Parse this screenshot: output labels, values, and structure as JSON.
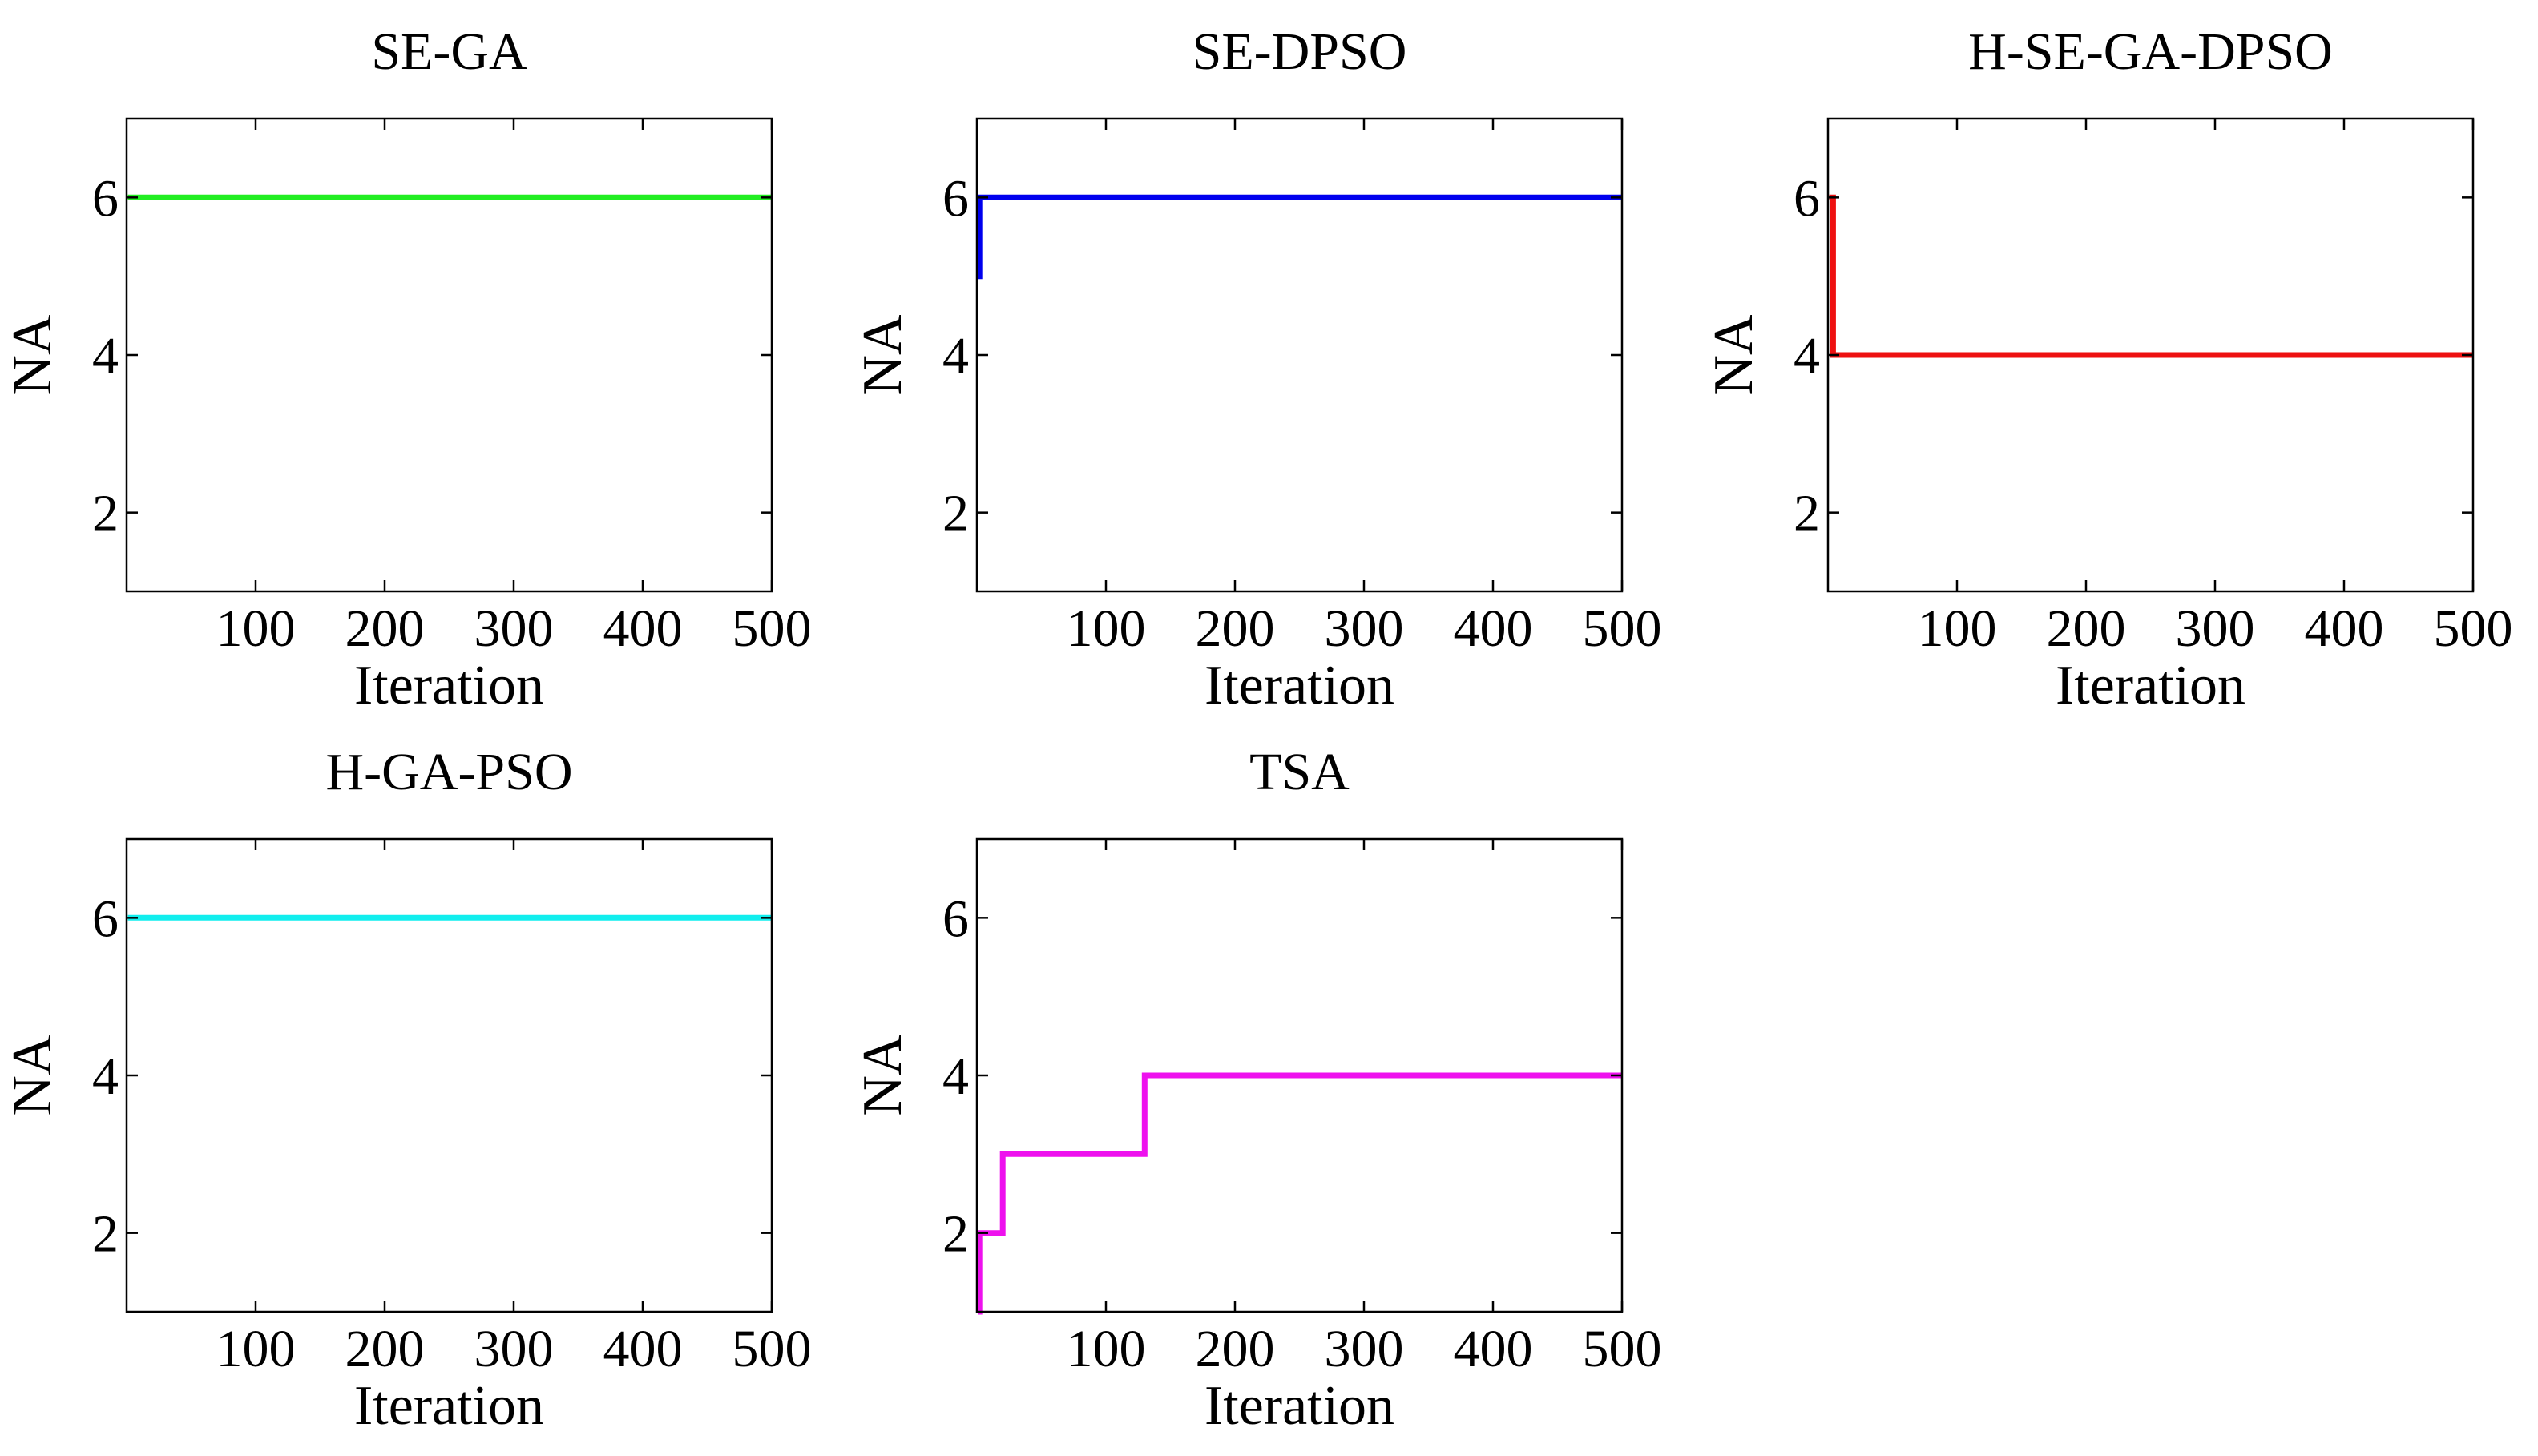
{
  "chart_data": [
    {
      "type": "line",
      "title": "SE-GA",
      "xlabel": "Iteration",
      "ylabel": "NA",
      "xlim": [
        0,
        500
      ],
      "ylim": [
        1,
        7
      ],
      "xticks": [
        100,
        200,
        300,
        400,
        500
      ],
      "yticks": [
        2,
        4,
        6
      ],
      "grid": false,
      "series": [
        {
          "name": "SE-GA",
          "color": "#22ee22",
          "x": [
            1,
            500
          ],
          "y": [
            6,
            6
          ]
        }
      ]
    },
    {
      "type": "line",
      "title": "SE-DPSO",
      "xlabel": "Iteration",
      "ylabel": "NA",
      "xlim": [
        0,
        500
      ],
      "ylim": [
        1,
        7
      ],
      "xticks": [
        100,
        200,
        300,
        400,
        500
      ],
      "yticks": [
        2,
        4,
        6
      ],
      "grid": false,
      "series": [
        {
          "name": "SE-DPSO",
          "color": "#0000ee",
          "x": [
            1,
            2,
            2,
            500
          ],
          "y": [
            5,
            5,
            6,
            6
          ]
        }
      ]
    },
    {
      "type": "line",
      "title": "H-SE-GA-DPSO",
      "xlabel": "Iteration",
      "ylabel": "NA",
      "xlim": [
        0,
        500
      ],
      "ylim": [
        1,
        7
      ],
      "xticks": [
        100,
        200,
        300,
        400,
        500
      ],
      "yticks": [
        2,
        4,
        6
      ],
      "grid": false,
      "series": [
        {
          "name": "H-SE-GA-DPSO",
          "color": "#ee1111",
          "x": [
            1,
            4,
            4,
            500
          ],
          "y": [
            6,
            6,
            4,
            4
          ]
        }
      ]
    },
    {
      "type": "line",
      "title": "H-GA-PSO",
      "xlabel": "Iteration",
      "ylabel": "NA",
      "xlim": [
        0,
        500
      ],
      "ylim": [
        1,
        7
      ],
      "xticks": [
        100,
        200,
        300,
        400,
        500
      ],
      "yticks": [
        2,
        4,
        6
      ],
      "grid": false,
      "series": [
        {
          "name": "H-GA-PSO",
          "color": "#11eeee",
          "x": [
            1,
            500
          ],
          "y": [
            6,
            6
          ]
        }
      ]
    },
    {
      "type": "line",
      "title": "TSA",
      "xlabel": "Iteration",
      "ylabel": "NA",
      "xlim": [
        0,
        500
      ],
      "ylim": [
        1,
        7
      ],
      "xticks": [
        100,
        200,
        300,
        400,
        500
      ],
      "yticks": [
        2,
        4,
        6
      ],
      "grid": false,
      "series": [
        {
          "name": "TSA",
          "color": "#ee11ee",
          "x": [
            1,
            2,
            2,
            20,
            20,
            130,
            130,
            500
          ],
          "y": [
            1,
            1,
            2,
            2,
            3,
            3,
            4,
            4
          ]
        }
      ]
    }
  ]
}
